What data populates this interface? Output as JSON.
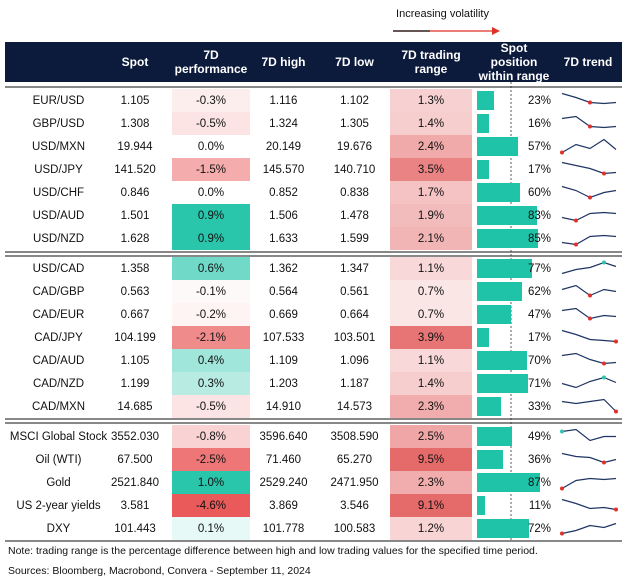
{
  "header": {
    "title": "Increasing volatility",
    "columns": [
      "Spot",
      "7D performance",
      "7D high",
      "7D low",
      "7D trading range",
      "Spot position within range",
      "7D trend"
    ]
  },
  "groups": [
    {
      "rows": [
        [
          "EUR/USD",
          "1.105",
          "-0.3%",
          "1.116",
          "1.102",
          "1.3%",
          "23%"
        ],
        [
          "GBP/USD",
          "1.308",
          "-0.5%",
          "1.324",
          "1.305",
          "1.4%",
          "16%"
        ],
        [
          "USD/MXN",
          "19.944",
          "0.0%",
          "20.149",
          "19.676",
          "2.4%",
          "57%"
        ],
        [
          "USD/JPY",
          "141.520",
          "-1.5%",
          "145.570",
          "140.710",
          "3.5%",
          "17%"
        ],
        [
          "USD/CHF",
          "0.846",
          "0.0%",
          "0.852",
          "0.838",
          "1.7%",
          "60%"
        ],
        [
          "USD/AUD",
          "1.501",
          "0.9%",
          "1.506",
          "1.478",
          "1.9%",
          "83%"
        ],
        [
          "USD/NZD",
          "1.628",
          "0.9%",
          "1.633",
          "1.599",
          "2.1%",
          "85%"
        ]
      ]
    },
    {
      "rows": [
        [
          "USD/CAD",
          "1.358",
          "0.6%",
          "1.362",
          "1.347",
          "1.1%",
          "77%"
        ],
        [
          "CAD/GBP",
          "0.563",
          "-0.1%",
          "0.564",
          "0.561",
          "0.7%",
          "62%"
        ],
        [
          "CAD/EUR",
          "0.667",
          "-0.2%",
          "0.669",
          "0.664",
          "0.7%",
          "47%"
        ],
        [
          "CAD/JPY",
          "104.199",
          "-2.1%",
          "107.533",
          "103.501",
          "3.9%",
          "17%"
        ],
        [
          "CAD/AUD",
          "1.105",
          "0.4%",
          "1.109",
          "1.096",
          "1.1%",
          "70%"
        ],
        [
          "CAD/NZD",
          "1.199",
          "0.3%",
          "1.203",
          "1.187",
          "1.4%",
          "71%"
        ],
        [
          "CAD/MXN",
          "14.685",
          "-0.5%",
          "14.910",
          "14.573",
          "2.3%",
          "33%"
        ]
      ]
    },
    {
      "rows": [
        [
          "MSCI Global Stock",
          "3552.030",
          "-0.8%",
          "3596.640",
          "3508.590",
          "2.5%",
          "49%"
        ],
        [
          "Oil (WTI)",
          "67.500",
          "-2.5%",
          "71.460",
          "65.270",
          "9.5%",
          "36%"
        ],
        [
          "Gold",
          "2521.840",
          "1.0%",
          "2529.240",
          "2471.950",
          "2.3%",
          "87%"
        ],
        [
          "US 2-year yields",
          "3.581",
          "-4.6%",
          "3.869",
          "3.546",
          "9.1%",
          "11%"
        ],
        [
          "DXY",
          "101.443",
          "0.1%",
          "101.778",
          "100.583",
          "1.2%",
          "72%"
        ]
      ]
    }
  ],
  "footer": {
    "note": "Note: trading range is the percentage difference between high and low trading values for the specified time period.",
    "sources": "Sources: Bloomberg, Macrobond, Convera - September 11, 2024"
  }
}
